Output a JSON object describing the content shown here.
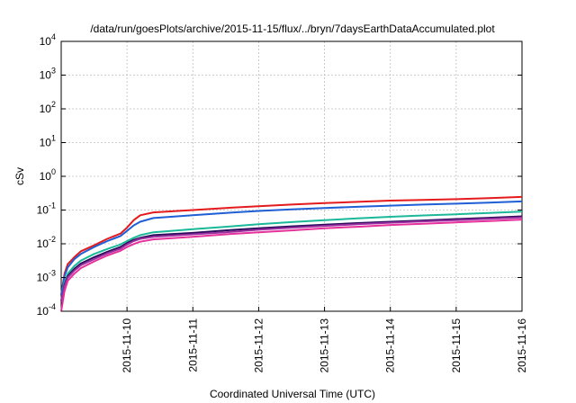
{
  "chart_data": {
    "type": "line",
    "title": "/data/run/goesPlots/archive/2015-11-15/flux/../bryn/7daysEarthDataAccumulated.plot",
    "xlabel": "Coordinated Universal Time (UTC)",
    "ylabel": "cSv",
    "x_range": [
      "2015-11-09 00:00",
      "2015-11-16 00:00"
    ],
    "x_ticks": [
      "2015-11-10",
      "2015-11-11",
      "2015-11-12",
      "2015-11-13",
      "2015-11-14",
      "2015-11-15",
      "2015-11-16"
    ],
    "y_scale": "log",
    "ylim": [
      0.0001,
      10000
    ],
    "y_ticks": [
      {
        "value": 0.0001,
        "base": "10",
        "exp": "-4"
      },
      {
        "value": 0.001,
        "base": "10",
        "exp": "-3"
      },
      {
        "value": 0.01,
        "base": "10",
        "exp": "-2"
      },
      {
        "value": 0.1,
        "base": "10",
        "exp": "-1"
      },
      {
        "value": 1,
        "base": "10",
        "exp": "0"
      },
      {
        "value": 10,
        "base": "10",
        "exp": "1"
      },
      {
        "value": 100,
        "base": "10",
        "exp": "2"
      },
      {
        "value": 1000,
        "base": "10",
        "exp": "3"
      },
      {
        "value": 10000,
        "base": "10",
        "exp": "4"
      }
    ],
    "grid": true,
    "series": [
      {
        "color": "#e41a1c",
        "x": [
          "2015-11-09 00:00",
          "2015-11-09 01:12",
          "2015-11-09 02:24",
          "2015-11-09 04:48",
          "2015-11-09 07:12",
          "2015-11-09 12:00",
          "2015-11-09 16:48",
          "2015-11-09 21:36",
          "2015-11-10 00:00",
          "2015-11-10 02:24",
          "2015-11-10 04:48",
          "2015-11-10 09:36",
          "2015-11-11 00:00",
          "2015-11-11 12:00",
          "2015-11-12 00:00",
          "2015-11-12 12:00",
          "2015-11-13 00:00",
          "2015-11-13 12:00",
          "2015-11-14 00:00",
          "2015-11-14 12:00",
          "2015-11-15 00:00",
          "2015-11-15 12:00",
          "2015-11-16 00:00"
        ],
        "y": [
          0.0003,
          0.0013,
          0.0025,
          0.004,
          0.006,
          0.009,
          0.014,
          0.02,
          0.03,
          0.05,
          0.07,
          0.085,
          0.1,
          0.115,
          0.13,
          0.145,
          0.16,
          0.175,
          0.19,
          0.2,
          0.21,
          0.225,
          0.245
        ]
      },
      {
        "color": "#1f5fd6",
        "x": [
          "2015-11-09 00:00",
          "2015-11-09 01:12",
          "2015-11-09 02:24",
          "2015-11-09 04:48",
          "2015-11-09 07:12",
          "2015-11-09 12:00",
          "2015-11-09 16:48",
          "2015-11-09 21:36",
          "2015-11-10 00:00",
          "2015-11-10 02:24",
          "2015-11-10 04:48",
          "2015-11-10 09:36",
          "2015-11-11 00:00",
          "2015-11-11 12:00",
          "2015-11-12 00:00",
          "2015-11-12 12:00",
          "2015-11-13 00:00",
          "2015-11-13 12:00",
          "2015-11-14 00:00",
          "2015-11-14 12:00",
          "2015-11-15 00:00",
          "2015-11-15 12:00",
          "2015-11-16 00:00"
        ],
        "y": [
          0.0003,
          0.0011,
          0.002,
          0.0035,
          0.005,
          0.008,
          0.012,
          0.017,
          0.024,
          0.035,
          0.045,
          0.058,
          0.07,
          0.082,
          0.094,
          0.105,
          0.115,
          0.125,
          0.135,
          0.145,
          0.155,
          0.165,
          0.18
        ]
      },
      {
        "color": "#1bb89a",
        "x": [
          "2015-11-09 00:00",
          "2015-11-09 01:12",
          "2015-11-09 02:24",
          "2015-11-09 04:48",
          "2015-11-09 07:12",
          "2015-11-09 12:00",
          "2015-11-09 16:48",
          "2015-11-09 21:36",
          "2015-11-10 00:00",
          "2015-11-10 02:24",
          "2015-11-10 04:48",
          "2015-11-10 09:36",
          "2015-11-11 00:00",
          "2015-11-11 12:00",
          "2015-11-12 00:00",
          "2015-11-12 12:00",
          "2015-11-13 00:00",
          "2015-11-13 12:00",
          "2015-11-14 00:00",
          "2015-11-14 12:00",
          "2015-11-15 00:00",
          "2015-11-15 12:00",
          "2015-11-16 00:00"
        ],
        "y": [
          0.0002,
          0.0007,
          0.0013,
          0.0022,
          0.0032,
          0.005,
          0.007,
          0.0095,
          0.012,
          0.015,
          0.018,
          0.022,
          0.027,
          0.032,
          0.038,
          0.044,
          0.05,
          0.057,
          0.063,
          0.069,
          0.075,
          0.082,
          0.09
        ]
      },
      {
        "color": "#2a0c5a",
        "x": [
          "2015-11-09 00:00",
          "2015-11-09 01:12",
          "2015-11-09 02:24",
          "2015-11-09 04:48",
          "2015-11-09 07:12",
          "2015-11-09 12:00",
          "2015-11-09 16:48",
          "2015-11-09 21:36",
          "2015-11-10 00:00",
          "2015-11-10 02:24",
          "2015-11-10 04:48",
          "2015-11-10 09:36",
          "2015-11-11 00:00",
          "2015-11-11 12:00",
          "2015-11-12 00:00",
          "2015-11-12 12:00",
          "2015-11-13 00:00",
          "2015-11-13 12:00",
          "2015-11-14 00:00",
          "2015-11-14 12:00",
          "2015-11-15 00:00",
          "2015-11-15 12:00",
          "2015-11-16 00:00"
        ],
        "y": [
          0.0002,
          0.0006,
          0.0011,
          0.0018,
          0.0026,
          0.004,
          0.0058,
          0.008,
          0.0105,
          0.013,
          0.015,
          0.018,
          0.021,
          0.025,
          0.029,
          0.033,
          0.037,
          0.041,
          0.045,
          0.049,
          0.054,
          0.059,
          0.065
        ]
      },
      {
        "color": "#9a2ea0",
        "x": [
          "2015-11-09 00:00",
          "2015-11-09 01:12",
          "2015-11-09 02:24",
          "2015-11-09 04:48",
          "2015-11-09 07:12",
          "2015-11-09 12:00",
          "2015-11-09 16:48",
          "2015-11-09 21:36",
          "2015-11-10 00:00",
          "2015-11-10 02:24",
          "2015-11-10 04:48",
          "2015-11-10 09:36",
          "2015-11-11 00:00",
          "2015-11-11 12:00",
          "2015-11-12 00:00",
          "2015-11-12 12:00",
          "2015-11-13 00:00",
          "2015-11-13 12:00",
          "2015-11-14 00:00",
          "2015-11-14 12:00",
          "2015-11-15 00:00",
          "2015-11-15 12:00",
          "2015-11-16 00:00"
        ],
        "y": [
          0.0002,
          0.00055,
          0.001,
          0.0016,
          0.0023,
          0.0035,
          0.0052,
          0.0072,
          0.0095,
          0.012,
          0.014,
          0.016,
          0.019,
          0.022,
          0.026,
          0.03,
          0.034,
          0.038,
          0.042,
          0.046,
          0.05,
          0.055,
          0.06
        ]
      },
      {
        "color": "#e6309a",
        "x": [
          "2015-11-09 00:00",
          "2015-11-09 01:12",
          "2015-11-09 02:24",
          "2015-11-09 04:48",
          "2015-11-09 07:12",
          "2015-11-09 12:00",
          "2015-11-09 16:48",
          "2015-11-09 21:36",
          "2015-11-10 00:00",
          "2015-11-10 02:24",
          "2015-11-10 04:48",
          "2015-11-10 09:36",
          "2015-11-11 00:00",
          "2015-11-11 12:00",
          "2015-11-12 00:00",
          "2015-11-12 12:00",
          "2015-11-13 00:00",
          "2015-11-13 12:00",
          "2015-11-14 00:00",
          "2015-11-14 12:00",
          "2015-11-15 00:00",
          "2015-11-15 12:00",
          "2015-11-16 00:00"
        ],
        "y": [
          0.0001,
          0.0004,
          0.0008,
          0.0013,
          0.0019,
          0.003,
          0.0045,
          0.0062,
          0.008,
          0.0098,
          0.0115,
          0.0135,
          0.016,
          0.019,
          0.022,
          0.025,
          0.029,
          0.032,
          0.036,
          0.039,
          0.043,
          0.047,
          0.052
        ]
      }
    ]
  }
}
